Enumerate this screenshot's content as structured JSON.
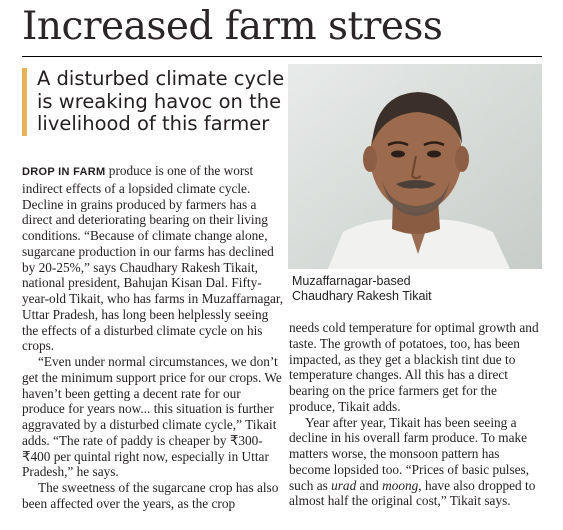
{
  "headline": "Increased farm stress",
  "deck": "A disturbed climate cycle is wreaking havoc on the livelihood of this farmer",
  "photo": {
    "caption_line1": "Muzaffarnagar-based",
    "caption_line2": "Chaudhary Rakesh Tikait"
  },
  "body": {
    "lead_in": "DROP IN FARM",
    "p1": " produce is one of the worst indirect effects of a lopsided climate cycle. Decline in grains produced by farmers has a direct and deteriorating bearing on their living conditions. “Because of climate change alone, sugarcane production in our farms has declined by 20-25%,” says Chaudhary Rakesh Tikait, national president, Bahujan Kisan Dal. Fifty-year-old Tikait, who has farms in Muzaffarnagar, Uttar Pradesh, has long been helplessly seeing the effects of a disturbed climate cycle on his crops.",
    "p2": "“Even under normal circumstances, we don’t get the minimum support price for our crops. We haven’t been getting a decent rate for our produce for years now... this situation is further aggravated by a disturbed climate cycle,” Tikait adds. “The rate of paddy is cheaper by ₹300-₹400 per quintal right now, especially in Uttar Pradesh,” he says.",
    "p3": "The sweetness of the sugarcane crop has also been affected over the years, as the crop",
    "p4": "needs cold temperature for optimal growth and taste. The growth of potatoes, too, has been impacted, as they get a blackish tint due to temperature changes. All this has a direct bearing on the price farmers get for the produce, Tikait adds.",
    "p5a": "Year after year, Tikait has been seeing a decline in his overall farm produce. To make matters worse, the monsoon pattern has become lopsided too. “Prices of basic pulses, such as ",
    "p5_urad": "urad",
    "p5b": " and ",
    "p5_moong": "moong",
    "p5c": ", have also dropped to almost half the original cost,” Tikait says."
  },
  "colors": {
    "accent_bar": "#e6b35a",
    "text": "#231f20"
  }
}
